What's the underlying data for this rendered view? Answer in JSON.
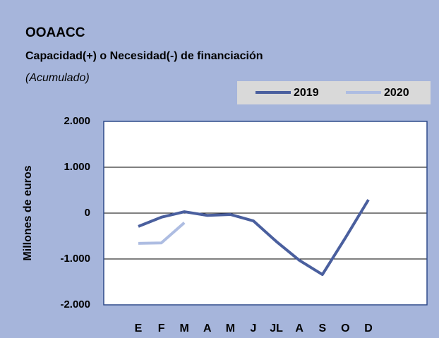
{
  "chart_data": {
    "type": "line",
    "title": "OOAACC",
    "subtitle": "Capacidad(+) o Necesidad(-) de financiación",
    "note": "(Acumulado)",
    "y_label": "Millones de euros",
    "categories": [
      "E",
      "F",
      "M",
      "A",
      "M",
      "J",
      "JL",
      "A",
      "S",
      "O",
      "D"
    ],
    "series": [
      {
        "name": "2019",
        "color": "#4a5f9e",
        "values": [
          -290,
          -90,
          30,
          -50,
          -30,
          -170,
          -620,
          -1030,
          -1340,
          -540,
          290
        ]
      },
      {
        "name": "2020",
        "color": "#aebde2",
        "values": [
          -660,
          -650,
          -210,
          null,
          null,
          null,
          null,
          null,
          null,
          null,
          null
        ]
      }
    ],
    "ylim": [
      -2000,
      2000
    ],
    "yticks": [
      {
        "value": -2000,
        "label": "-2.000"
      },
      {
        "value": -1000,
        "label": "-1.000"
      },
      0,
      {
        "value": 1000,
        "label": "1.000"
      },
      {
        "value": 2000,
        "label": "2.000"
      }
    ],
    "grid": true,
    "legend": "top-right"
  }
}
